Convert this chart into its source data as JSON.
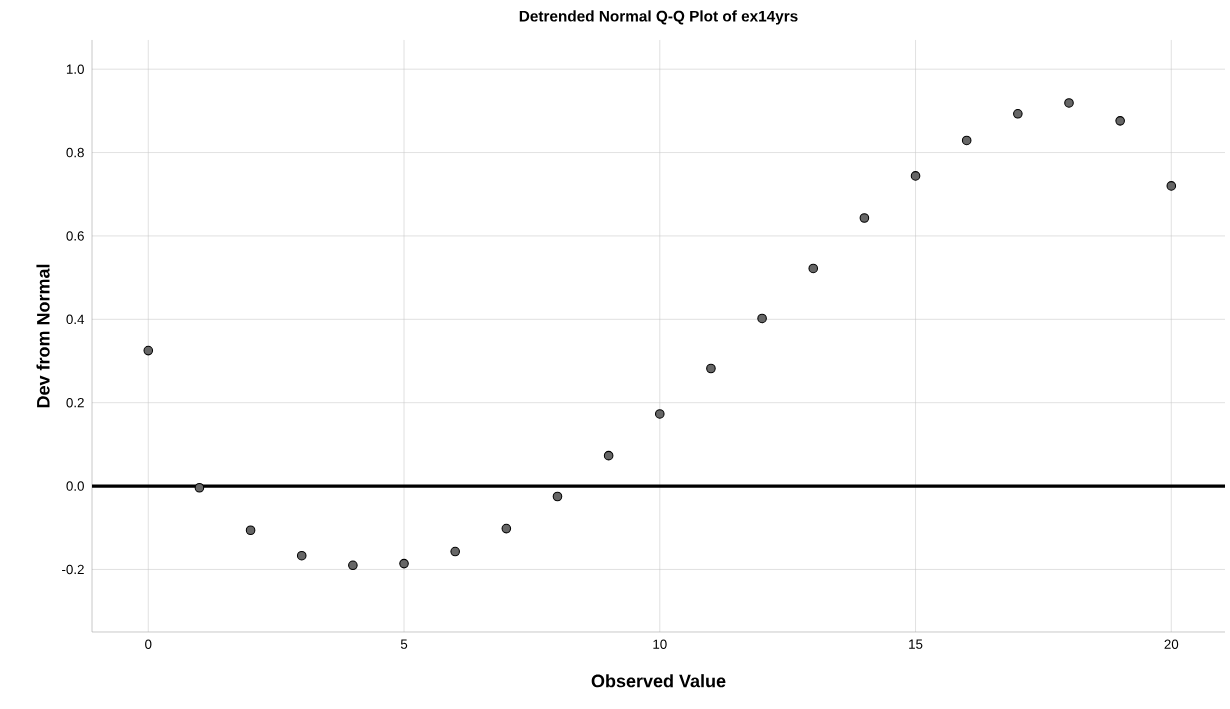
{
  "chart_data": {
    "type": "scatter",
    "title": "Detrended Normal Q-Q Plot of ex14yrs",
    "xlabel": "Observed Value",
    "ylabel": "Dev from Normal",
    "x": [
      0,
      1,
      2,
      3,
      4,
      5,
      6,
      7,
      8,
      9,
      10,
      11,
      12,
      13,
      14,
      15,
      16,
      17,
      18,
      19,
      20
    ],
    "series": [
      {
        "color": "#666666",
        "values": [
          0.325,
          -0.004,
          -0.106,
          -0.167,
          -0.19,
          -0.186,
          -0.157,
          -0.102,
          -0.025,
          0.073,
          0.173,
          0.282,
          0.402,
          0.522,
          0.643,
          0.744,
          0.829,
          0.893,
          0.919,
          0.876,
          0.72
        ]
      }
    ],
    "xlim": [
      -1.1,
      21.05
    ],
    "ylim": [
      -0.35,
      1.07
    ],
    "xticks": [
      0,
      5,
      10,
      15,
      20
    ],
    "yticks": [
      {
        "value": -0.2,
        "label": "-0.2"
      },
      {
        "value": 0,
        "label": "0.0"
      },
      {
        "value": 0.2,
        "label": "0.2"
      },
      {
        "value": 0.4,
        "label": "0.4"
      },
      {
        "value": 0.6,
        "label": "0.6"
      },
      {
        "value": 0.8,
        "label": "0.8"
      },
      {
        "value": 1,
        "label": "1.0"
      }
    ],
    "ref_lines": [
      {
        "axis": "y",
        "value": 0,
        "color": "#000000",
        "line_style": "solid"
      }
    ],
    "grid": true,
    "marker": "circle"
  }
}
